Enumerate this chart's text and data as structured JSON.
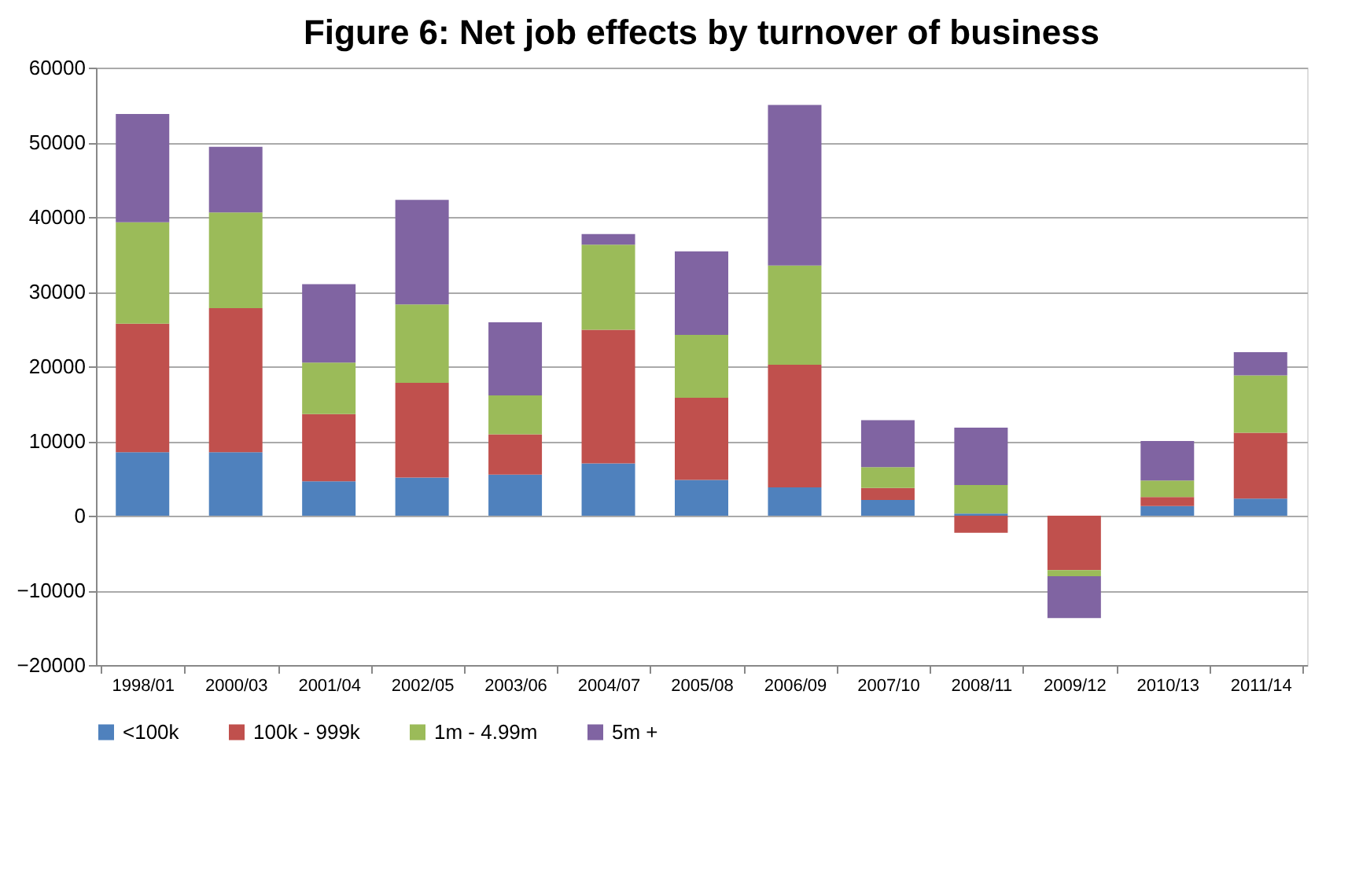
{
  "chart_data": {
    "type": "bar",
    "title": "Figure 6: Net job effects by turnover of business",
    "stacked": true,
    "categories": [
      "1998/01",
      "2000/03",
      "2001/04",
      "2002/05",
      "2003/06",
      "2004/07",
      "2005/08",
      "2006/09",
      "2007/10",
      "2008/11",
      "2009/12",
      "2010/13",
      "2011/14"
    ],
    "series": [
      {
        "name": "<100k",
        "color": "#4f81bd",
        "values": [
          8500,
          8500,
          4600,
          5100,
          5500,
          7000,
          4800,
          3800,
          2100,
          300,
          0,
          1300,
          2300
        ]
      },
      {
        "name": "100k - 999k",
        "color": "#c0504d",
        "values": [
          17200,
          19300,
          9000,
          12700,
          5400,
          17900,
          11000,
          16400,
          1600,
          -2300,
          -7300,
          1200,
          8800
        ]
      },
      {
        "name": "1m - 4.99m",
        "color": "#9bbb59",
        "values": [
          13600,
          12800,
          6900,
          10500,
          5200,
          11400,
          8400,
          13300,
          2800,
          3800,
          -800,
          2200,
          7700
        ]
      },
      {
        "name": "5m +",
        "color": "#8064a2",
        "values": [
          14500,
          8800,
          10500,
          14000,
          9800,
          1400,
          11200,
          21500,
          6300,
          7700,
          -5600,
          5300,
          3100
        ]
      }
    ],
    "ylim": [
      -20000,
      60000
    ],
    "yticks": [
      -20000,
      -10000,
      0,
      10000,
      20000,
      30000,
      40000,
      50000,
      60000
    ],
    "grid": "y",
    "legend": "bottom"
  }
}
